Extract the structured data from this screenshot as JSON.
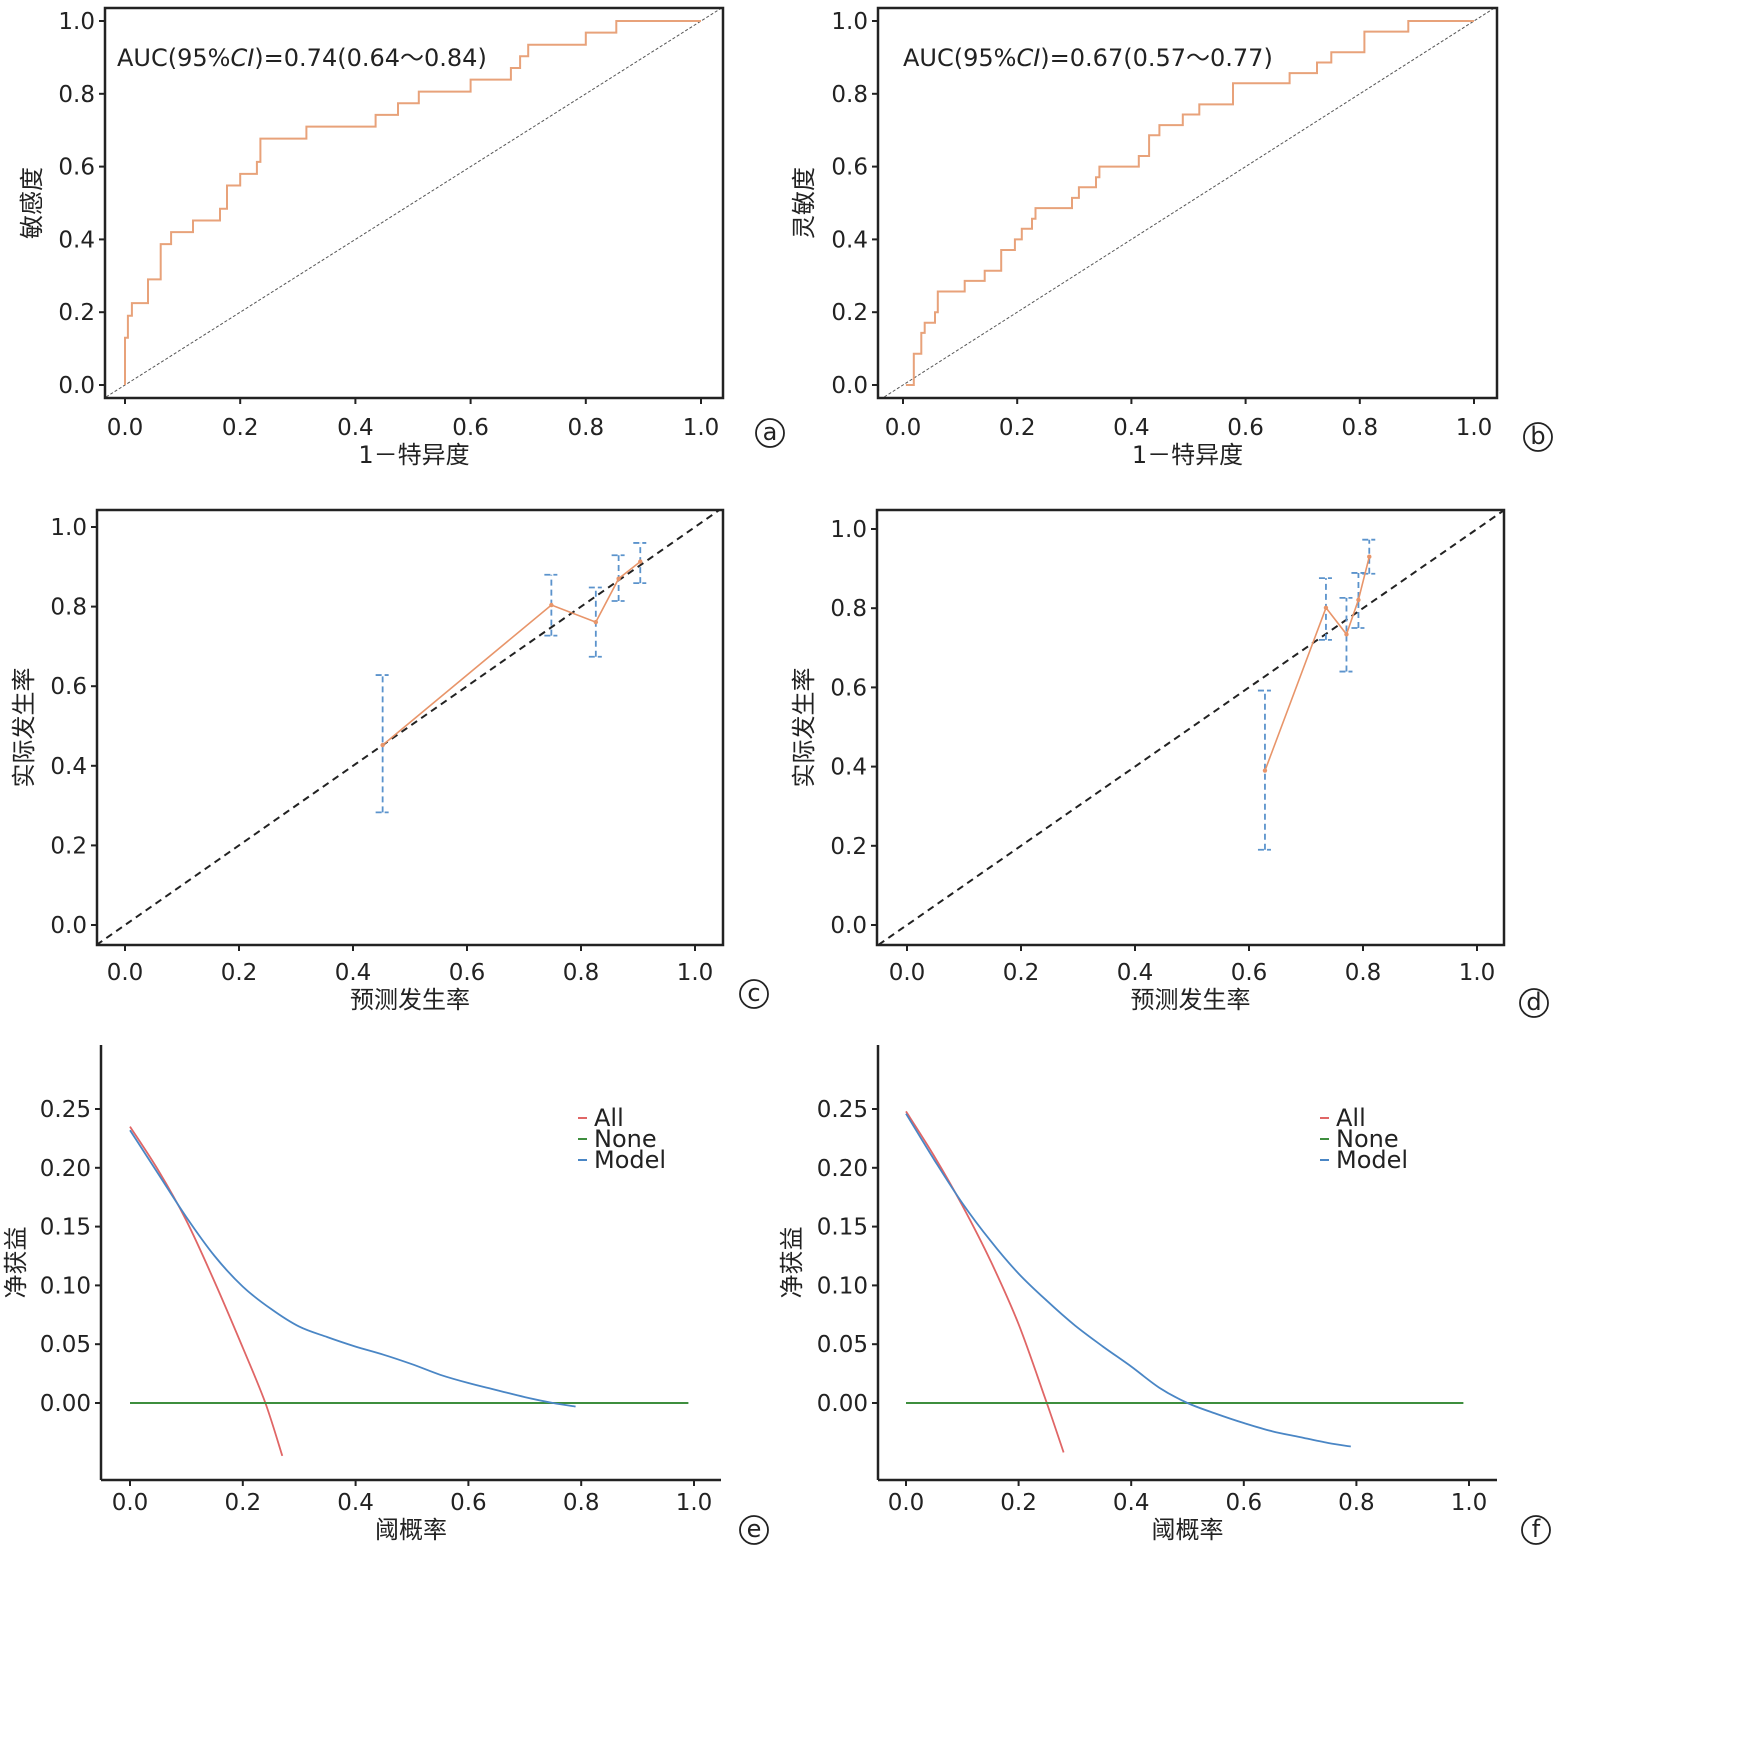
{
  "colors": {
    "roc_curve": "#E8A27A",
    "reference": "#555555",
    "cal_line": "#E8956A",
    "cal_error": "#5B93CC",
    "cal_diag": "#222222",
    "dca_all": "#E06666",
    "dca_none": "#3E8E3E",
    "dca_model": "#4A86C5",
    "axis": "#222222"
  },
  "chart_data": [
    {
      "id": "a",
      "type": "line",
      "subtype": "roc",
      "panel_label": "a",
      "annotation": "AUC(95%CI)=0.74(0.64～0.84)",
      "annotation_parts": {
        "pre": "AUC(95%",
        "italic": "CI",
        "post": ")=0.74(0.64～0.84)"
      },
      "xlabel": "1－特异度",
      "ylabel": "敏感度",
      "xlim": [
        -0.04,
        1.04
      ],
      "ylim": [
        -0.04,
        1.04
      ],
      "xticks": [
        0.0,
        0.2,
        0.4,
        0.6,
        0.8,
        1.0
      ],
      "xtick_labels": [
        "0.0",
        "0.2",
        "0.4",
        "0.6",
        "0.8",
        "1.0"
      ],
      "yticks": [
        0.0,
        0.2,
        0.4,
        0.6,
        0.8,
        1.0
      ],
      "ytick_labels": [
        "0.0",
        "0.2",
        "0.4",
        "0.6",
        "0.8",
        "1.0"
      ],
      "reference_line": [
        [
          -0.04,
          -0.04
        ],
        [
          1.04,
          1.04
        ]
      ],
      "series": [
        {
          "name": "ROC",
          "step_points": [
            [
              0.0,
              0.0
            ],
            [
              0.0,
              0.13
            ],
            [
              0.005,
              0.13
            ],
            [
              0.005,
              0.19
            ],
            [
              0.012,
              0.19
            ],
            [
              0.012,
              0.225
            ],
            [
              0.04,
              0.225
            ],
            [
              0.04,
              0.29
            ],
            [
              0.062,
              0.29
            ],
            [
              0.062,
              0.387
            ],
            [
              0.08,
              0.387
            ],
            [
              0.08,
              0.42
            ],
            [
              0.118,
              0.42
            ],
            [
              0.118,
              0.452
            ],
            [
              0.165,
              0.452
            ],
            [
              0.165,
              0.484
            ],
            [
              0.177,
              0.484
            ],
            [
              0.177,
              0.548
            ],
            [
              0.2,
              0.548
            ],
            [
              0.2,
              0.58
            ],
            [
              0.229,
              0.58
            ],
            [
              0.229,
              0.613
            ],
            [
              0.235,
              0.613
            ],
            [
              0.235,
              0.677
            ],
            [
              0.315,
              0.677
            ],
            [
              0.315,
              0.71
            ],
            [
              0.435,
              0.71
            ],
            [
              0.435,
              0.742
            ],
            [
              0.474,
              0.742
            ],
            [
              0.474,
              0.774
            ],
            [
              0.51,
              0.774
            ],
            [
              0.51,
              0.806
            ],
            [
              0.6,
              0.806
            ],
            [
              0.6,
              0.839
            ],
            [
              0.67,
              0.839
            ],
            [
              0.67,
              0.871
            ],
            [
              0.686,
              0.871
            ],
            [
              0.686,
              0.903
            ],
            [
              0.7,
              0.903
            ],
            [
              0.7,
              0.935
            ],
            [
              0.8,
              0.935
            ],
            [
              0.8,
              0.968
            ],
            [
              0.853,
              0.968
            ],
            [
              0.853,
              1.0
            ],
            [
              1.0,
              1.0
            ]
          ]
        }
      ]
    },
    {
      "id": "b",
      "type": "line",
      "subtype": "roc",
      "panel_label": "b",
      "annotation": "AUC(95%CI)=0.67(0.57～0.77)",
      "annotation_parts": {
        "pre": "AUC(95%",
        "italic": "CI",
        "post": ")=0.67(0.57～0.77)"
      },
      "xlabel": "1－特异度",
      "ylabel": "灵敏度",
      "xlim": [
        -0.04,
        1.04
      ],
      "ylim": [
        -0.04,
        1.04
      ],
      "xticks": [
        0.0,
        0.2,
        0.4,
        0.6,
        0.8,
        1.0
      ],
      "xtick_labels": [
        "0.0",
        "0.2",
        "0.4",
        "0.6",
        "0.8",
        "1.0"
      ],
      "yticks": [
        0.0,
        0.2,
        0.4,
        0.6,
        0.8,
        1.0
      ],
      "ytick_labels": [
        "0.0",
        "0.2",
        "0.4",
        "0.6",
        "0.8",
        "1.0"
      ],
      "reference_line": [
        [
          -0.04,
          -0.04
        ],
        [
          1.04,
          1.04
        ]
      ],
      "series": [
        {
          "name": "ROC",
          "step_points": [
            [
              0.005,
              0.0
            ],
            [
              0.019,
              0.0
            ],
            [
              0.019,
              0.086
            ],
            [
              0.032,
              0.086
            ],
            [
              0.032,
              0.143
            ],
            [
              0.038,
              0.143
            ],
            [
              0.038,
              0.171
            ],
            [
              0.056,
              0.171
            ],
            [
              0.056,
              0.2
            ],
            [
              0.061,
              0.2
            ],
            [
              0.061,
              0.257
            ],
            [
              0.108,
              0.257
            ],
            [
              0.108,
              0.286
            ],
            [
              0.143,
              0.286
            ],
            [
              0.143,
              0.314
            ],
            [
              0.172,
              0.314
            ],
            [
              0.172,
              0.371
            ],
            [
              0.196,
              0.371
            ],
            [
              0.196,
              0.4
            ],
            [
              0.208,
              0.4
            ],
            [
              0.208,
              0.429
            ],
            [
              0.226,
              0.429
            ],
            [
              0.226,
              0.457
            ],
            [
              0.232,
              0.457
            ],
            [
              0.232,
              0.486
            ],
            [
              0.296,
              0.486
            ],
            [
              0.296,
              0.514
            ],
            [
              0.308,
              0.514
            ],
            [
              0.308,
              0.543
            ],
            [
              0.338,
              0.543
            ],
            [
              0.338,
              0.571
            ],
            [
              0.344,
              0.571
            ],
            [
              0.344,
              0.6
            ],
            [
              0.413,
              0.6
            ],
            [
              0.413,
              0.629
            ],
            [
              0.431,
              0.629
            ],
            [
              0.431,
              0.686
            ],
            [
              0.449,
              0.686
            ],
            [
              0.449,
              0.714
            ],
            [
              0.49,
              0.714
            ],
            [
              0.49,
              0.743
            ],
            [
              0.519,
              0.743
            ],
            [
              0.519,
              0.771
            ],
            [
              0.578,
              0.771
            ],
            [
              0.578,
              0.829
            ],
            [
              0.677,
              0.829
            ],
            [
              0.677,
              0.857
            ],
            [
              0.725,
              0.857
            ],
            [
              0.725,
              0.886
            ],
            [
              0.75,
              0.886
            ],
            [
              0.75,
              0.914
            ],
            [
              0.808,
              0.914
            ],
            [
              0.808,
              0.971
            ],
            [
              0.885,
              0.971
            ],
            [
              0.885,
              1.0
            ],
            [
              1.0,
              1.0
            ]
          ]
        }
      ]
    },
    {
      "id": "c",
      "type": "line",
      "subtype": "calibration",
      "panel_label": "c",
      "xlabel": "预测发生率",
      "ylabel": "实际发生率",
      "xlim": [
        -0.05,
        1.05
      ],
      "ylim": [
        -0.05,
        1.05
      ],
      "xticks": [
        0.0,
        0.2,
        0.4,
        0.6,
        0.8,
        1.0
      ],
      "xtick_labels": [
        "0.0",
        "0.2",
        "0.4",
        "0.6",
        "0.8",
        "1.0"
      ],
      "yticks": [
        0.0,
        0.2,
        0.4,
        0.6,
        0.8,
        1.0
      ],
      "ytick_labels": [
        "0.0",
        "0.2",
        "0.4",
        "0.6",
        "0.8",
        "1.0"
      ],
      "reference_line": [
        [
          -0.05,
          -0.05
        ],
        [
          1.05,
          1.05
        ]
      ],
      "series": [
        {
          "name": "observed",
          "x": [
            0.452,
            0.748,
            0.826,
            0.866,
            0.904
          ],
          "y": [
            0.452,
            0.804,
            0.761,
            0.87,
            0.913
          ],
          "ci_lower": [
            0.283,
            0.727,
            0.674,
            0.814,
            0.859
          ],
          "ci_upper": [
            0.628,
            0.88,
            0.848,
            0.929,
            0.96
          ]
        }
      ]
    },
    {
      "id": "d",
      "type": "line",
      "subtype": "calibration",
      "panel_label": "d",
      "xlabel": "预测发生率",
      "ylabel": "实际发生率",
      "xlim": [
        -0.05,
        1.05
      ],
      "ylim": [
        -0.05,
        1.05
      ],
      "xticks": [
        0.0,
        0.2,
        0.4,
        0.6,
        0.8,
        1.0
      ],
      "xtick_labels": [
        "0.0",
        "0.2",
        "0.4",
        "0.6",
        "0.8",
        "1.0"
      ],
      "yticks": [
        0.0,
        0.2,
        0.4,
        0.6,
        0.8,
        1.0
      ],
      "ytick_labels": [
        "0.0",
        "0.2",
        "0.4",
        "0.6",
        "0.8",
        "1.0"
      ],
      "reference_line": [
        [
          -0.05,
          -0.05
        ],
        [
          1.05,
          1.05
        ]
      ],
      "series": [
        {
          "name": "observed",
          "x": [
            0.628,
            0.735,
            0.771,
            0.792,
            0.811
          ],
          "y": [
            0.39,
            0.801,
            0.734,
            0.821,
            0.93
          ],
          "ci_lower": [
            0.19,
            0.72,
            0.64,
            0.75,
            0.887
          ],
          "ci_upper": [
            0.592,
            0.876,
            0.826,
            0.889,
            0.973
          ]
        }
      ]
    },
    {
      "id": "e",
      "type": "line",
      "subtype": "decision_curve",
      "panel_label": "e",
      "xlabel": "阈概率",
      "ylabel": "净获益",
      "xlim": [
        -0.05,
        1.05
      ],
      "ylim": [
        -0.066,
        0.3
      ],
      "xticks": [
        0.0,
        0.2,
        0.4,
        0.6,
        0.8,
        1.0
      ],
      "xtick_labels": [
        "0.0",
        "0.2",
        "0.4",
        "0.6",
        "0.8",
        "1.0"
      ],
      "yticks": [
        0.0,
        0.05,
        0.1,
        0.15,
        0.2,
        0.25
      ],
      "ytick_labels": [
        "0.00",
        "0.05",
        "0.10",
        "0.15",
        "0.20",
        "0.25"
      ],
      "legend": {
        "position": "top-right",
        "entries": [
          "All",
          "None",
          "Model"
        ]
      },
      "series": [
        {
          "name": "All",
          "x": [
            0.0,
            0.05,
            0.1,
            0.15,
            0.2,
            0.24,
            0.27
          ],
          "y": [
            0.235,
            0.198,
            0.155,
            0.103,
            0.047,
            0.0,
            -0.045
          ]
        },
        {
          "name": "None",
          "x": [
            0.0,
            0.99
          ],
          "y": [
            0.0,
            0.0
          ]
        },
        {
          "name": "Model",
          "x": [
            0.0,
            0.05,
            0.1,
            0.15,
            0.2,
            0.25,
            0.3,
            0.35,
            0.4,
            0.45,
            0.5,
            0.55,
            0.6,
            0.65,
            0.7,
            0.75,
            0.79
          ],
          "y": [
            0.232,
            0.195,
            0.158,
            0.125,
            0.099,
            0.08,
            0.065,
            0.056,
            0.048,
            0.041,
            0.033,
            0.024,
            0.017,
            0.011,
            0.005,
            0.0,
            -0.003
          ]
        }
      ]
    },
    {
      "id": "f",
      "type": "line",
      "subtype": "decision_curve",
      "panel_label": "f",
      "xlabel": "阈概率",
      "ylabel": "净获益",
      "xlim": [
        -0.05,
        1.05
      ],
      "ylim": [
        -0.066,
        0.3
      ],
      "xticks": [
        0.0,
        0.2,
        0.4,
        0.6,
        0.8,
        1.0
      ],
      "xtick_labels": [
        "0.0",
        "0.2",
        "0.4",
        "0.6",
        "0.8",
        "1.0"
      ],
      "yticks": [
        0.0,
        0.05,
        0.1,
        0.15,
        0.2,
        0.25
      ],
      "ytick_labels": [
        "0.00",
        "0.05",
        "0.10",
        "0.15",
        "0.20",
        "0.25"
      ],
      "legend": {
        "position": "top-right",
        "entries": [
          "All",
          "None",
          "Model"
        ]
      },
      "series": [
        {
          "name": "All",
          "x": [
            0.0,
            0.05,
            0.1,
            0.15,
            0.2,
            0.25,
            0.28
          ],
          "y": [
            0.248,
            0.21,
            0.168,
            0.121,
            0.067,
            0.0,
            -0.042
          ]
        },
        {
          "name": "None",
          "x": [
            0.0,
            0.99
          ],
          "y": [
            0.0,
            0.0
          ]
        },
        {
          "name": "Model",
          "x": [
            0.0,
            0.05,
            0.1,
            0.15,
            0.2,
            0.25,
            0.3,
            0.35,
            0.4,
            0.45,
            0.5,
            0.55,
            0.6,
            0.65,
            0.7,
            0.75,
            0.79
          ],
          "y": [
            0.246,
            0.207,
            0.17,
            0.138,
            0.11,
            0.087,
            0.066,
            0.048,
            0.031,
            0.013,
            0.0,
            -0.009,
            -0.017,
            -0.024,
            -0.029,
            -0.034,
            -0.037
          ]
        }
      ]
    }
  ]
}
